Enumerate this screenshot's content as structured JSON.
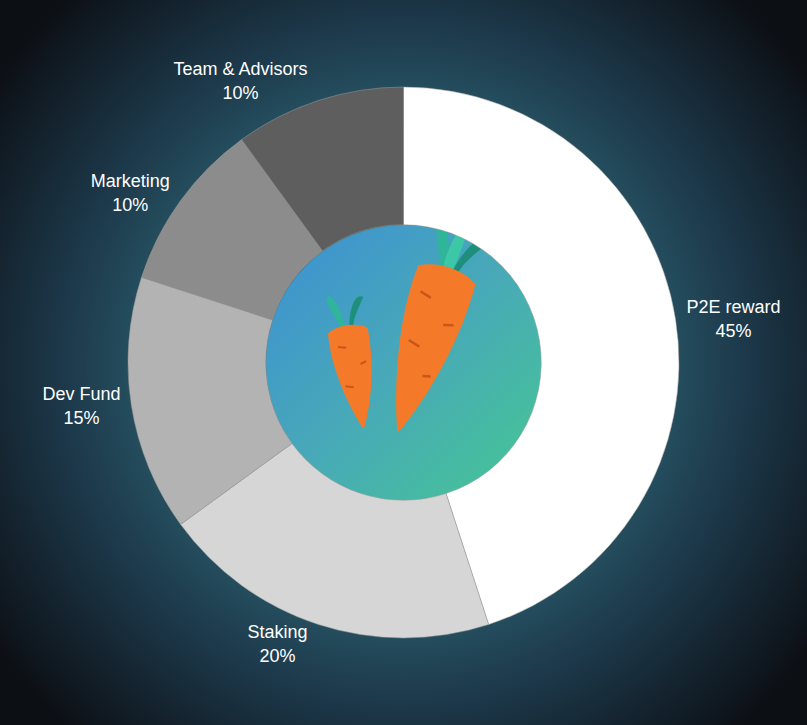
{
  "chart_data": {
    "type": "donut",
    "categories": [
      "P2E reward",
      "Staking",
      "Dev Fund",
      "Marketing",
      "Team & Advisors"
    ],
    "values": [
      45,
      20,
      15,
      10,
      10
    ],
    "value_labels": [
      "45%",
      "20%",
      "15%",
      "10%",
      "10%"
    ],
    "colors": [
      "#ffffff",
      "#d6d6d6",
      "#b3b3b3",
      "#8c8c8c",
      "#5e5e5e"
    ],
    "data_labels": true
  }
}
